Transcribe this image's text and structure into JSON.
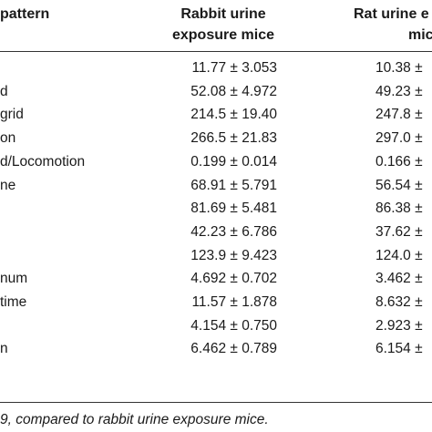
{
  "table": {
    "headers": {
      "col0_line1": "pattern",
      "col1_line1": "Rabbit urine",
      "col1_line2": "exposure mice",
      "col2_line1": "Rat urine e",
      "col2_line2": "mic"
    },
    "rows": [
      {
        "label": "",
        "rabbit": "11.77 ± 3.053",
        "rat": "10.38 ±"
      },
      {
        "label": "d",
        "rabbit": "52.08 ± 4.972",
        "rat": "49.23 ±"
      },
      {
        "label": "grid",
        "rabbit": "214.5 ± 19.40",
        "rat": "247.8 ±"
      },
      {
        "label": "on",
        "rabbit": "266.5 ± 21.83",
        "rat": "297.0 ±"
      },
      {
        "label": "d/Locomotion",
        "rabbit": "0.199 ± 0.014",
        "rat": "0.166 ±"
      },
      {
        "label": "ne",
        "rabbit": "68.91 ± 5.791",
        "rat": "56.54 ±"
      },
      {
        "label": "",
        "rabbit": "81.69 ± 5.481",
        "rat": "86.38 ±"
      },
      {
        "label": "",
        "rabbit": "42.23 ± 6.786",
        "rat": "37.62 ±"
      },
      {
        "label": "",
        "rabbit": "123.9 ± 9.423",
        "rat": "124.0 ±"
      },
      {
        "label": "num",
        "rabbit": "4.692 ± 0.702",
        "rat": "3.462 ±"
      },
      {
        "label": "time",
        "rabbit": "11.57 ± 1.878",
        "rat": "8.632 ±"
      },
      {
        "label": "",
        "rabbit": "4.154 ± 0.750",
        "rat": "2.923 ±"
      },
      {
        "label": "n",
        "rabbit": "6.462 ± 0.789",
        "rat": "6.154 ±"
      }
    ]
  },
  "footnote": "9, compared to rabbit urine exposure mice."
}
